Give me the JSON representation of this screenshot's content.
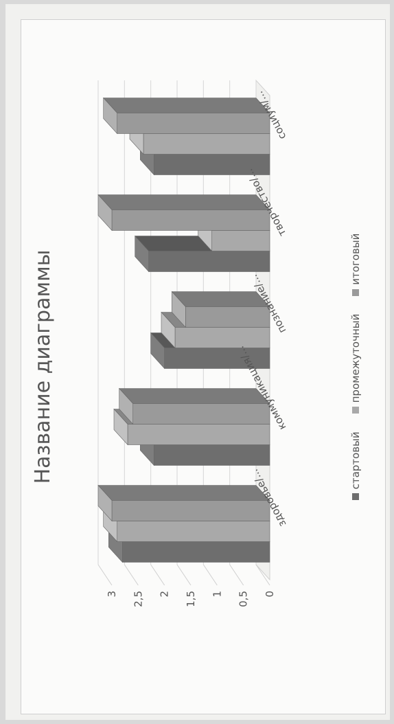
{
  "chart_data": {
    "type": "bar",
    "title": "Название диаграммы",
    "categories": [
      "здоровье/...",
      "коммуникация/...",
      "познание/...",
      "творчество/...",
      "социум/..."
    ],
    "series": [
      {
        "name": "стартовый",
        "values": [
          2.8,
          2.2,
          2.0,
          2.3,
          2.2
        ],
        "color": "#6e6e6e"
      },
      {
        "name": "промежуточный",
        "values": [
          2.9,
          2.7,
          1.8,
          1.1,
          2.4
        ],
        "color": "#a9a9a9"
      },
      {
        "name": "итоговый",
        "values": [
          3.0,
          2.6,
          1.6,
          3.0,
          2.9
        ],
        "color": "#9a9a9a"
      }
    ],
    "yticks": [
      "0",
      "0,5",
      "1",
      "1,5",
      "2",
      "2,5",
      "3"
    ],
    "ylim": [
      0,
      3
    ],
    "grid": true,
    "legend_position": "bottom",
    "style": "3d-column"
  }
}
